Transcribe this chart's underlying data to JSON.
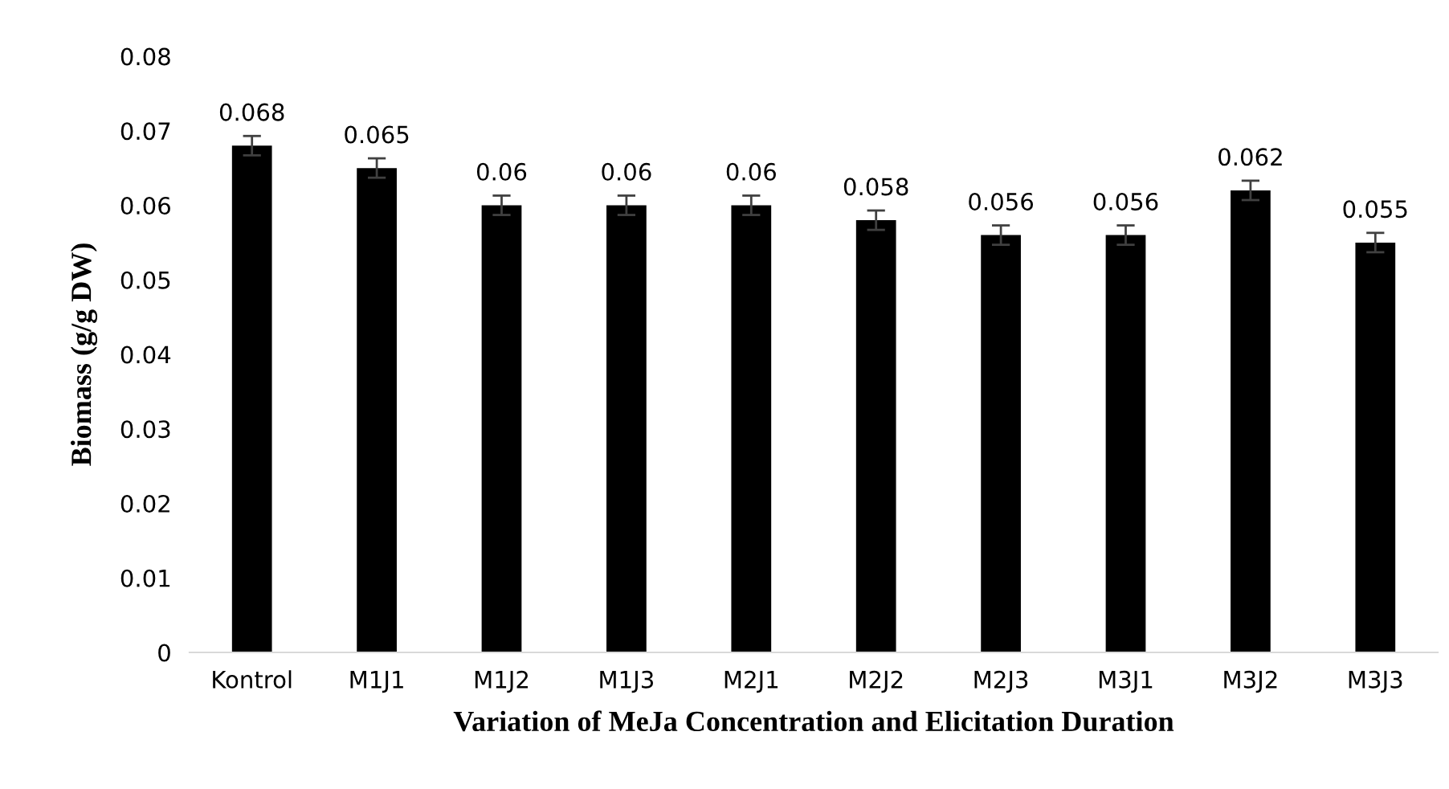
{
  "chart_data": {
    "type": "bar",
    "xlabel": "Variation of MeJa Concentration and Elicitation Duration",
    "ylabel": "Biomass (g/g DW)",
    "categories": [
      "Kontrol",
      "M1J1",
      "M1J2",
      "M1J3",
      "M2J1",
      "M2J2",
      "M2J3",
      "M3J1",
      "M3J2",
      "M3J3"
    ],
    "values": [
      0.068,
      0.065,
      0.06,
      0.06,
      0.06,
      0.058,
      0.056,
      0.056,
      0.062,
      0.055
    ],
    "errors": [
      0.0013,
      0.0013,
      0.0013,
      0.0013,
      0.0013,
      0.0013,
      0.0013,
      0.0013,
      0.0013,
      0.0013
    ],
    "color": "#000000",
    "data_labels": true,
    "grid": false,
    "ylim": [
      0,
      0.08
    ],
    "yticks": [
      {
        "value": 0,
        "label": "0"
      },
      0.01,
      0.02,
      0.03,
      0.04,
      0.05,
      0.06,
      0.07,
      0.08
    ]
  }
}
